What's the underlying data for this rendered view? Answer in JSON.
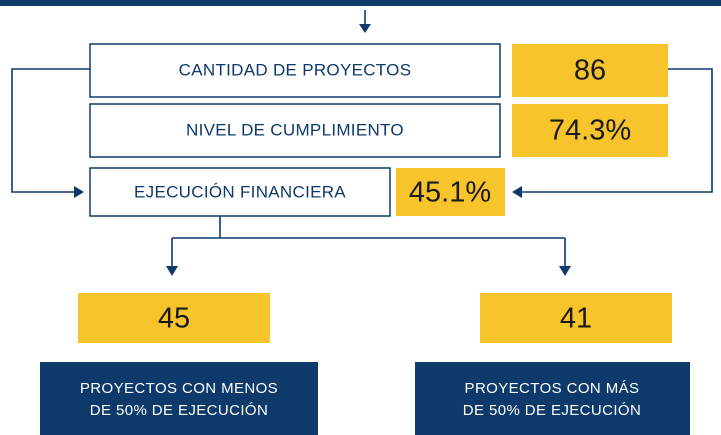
{
  "metrics": [
    {
      "label": "CANTIDAD DE PROYECTOS",
      "value": "86"
    },
    {
      "label": "NIVEL DE CUMPLIMIENTO",
      "value": "74.3%"
    },
    {
      "label": "EJECUCIÓN FINANCIERA",
      "value": "45.1%"
    }
  ],
  "branches": [
    {
      "value": "45",
      "label": [
        "PROYECTOS CON MENOS",
        "DE 50% DE EJECUCIÓN"
      ]
    },
    {
      "value": "41",
      "label": [
        "PROYECTOS CON MÁS",
        "DE 50% DE EJECUCIÓN"
      ]
    }
  ]
}
